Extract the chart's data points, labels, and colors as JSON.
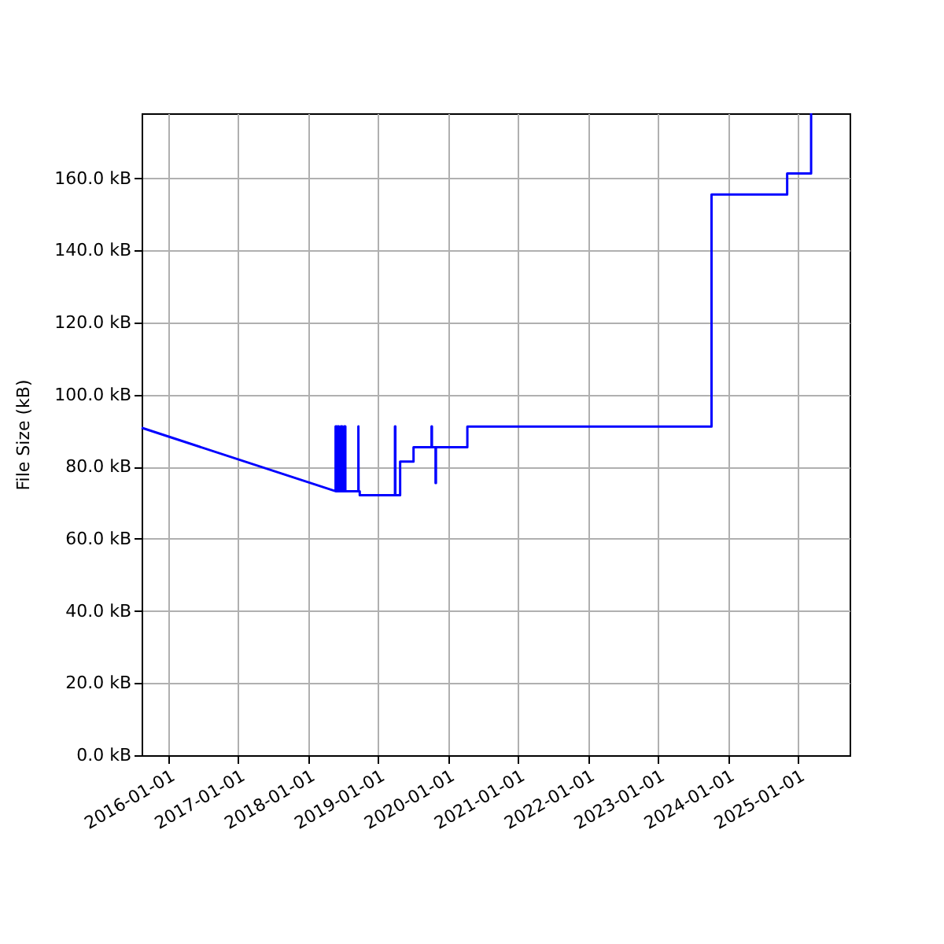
{
  "chart_data": {
    "type": "line",
    "ylabel": "File Size (kB)",
    "x": [
      "2015-08-15",
      "2018-05-24",
      "2018-05-24",
      "2018-05-29",
      "2018-05-29",
      "2018-06-04",
      "2018-06-04",
      "2018-06-10",
      "2018-06-10",
      "2018-06-20",
      "2018-06-20",
      "2018-06-28",
      "2018-06-28",
      "2018-07-08",
      "2018-07-08",
      "2018-07-14",
      "2018-07-14",
      "2018-09-20",
      "2018-09-20",
      "2018-09-21",
      "2018-09-27",
      "2018-09-27",
      "2019-03-30",
      "2019-03-30",
      "2019-04-01",
      "2019-04-01",
      "2019-04-26",
      "2019-04-26",
      "2019-07-05",
      "2019-07-05",
      "2019-10-07",
      "2019-10-07",
      "2019-10-09",
      "2019-10-09",
      "2019-10-28",
      "2019-10-28",
      "2019-10-30",
      "2019-10-30",
      "2020-04-11",
      "2020-04-11",
      "2023-10-08",
      "2023-10-08",
      "2024-11-06",
      "2024-11-06",
      "2025-03-11",
      "2025-03-11"
    ],
    "series": [
      {
        "color": "#0000ff",
        "values": [
          90.8,
          73.2,
          91.2,
          91.2,
          73.2,
          73.2,
          91.2,
          91.2,
          73.2,
          73.2,
          91.2,
          91.2,
          73.2,
          73.2,
          91.2,
          91.2,
          73.2,
          73.2,
          91.2,
          73.2,
          73.2,
          72.1,
          72.1,
          91.2,
          91.2,
          72.1,
          72.1,
          81.4,
          81.4,
          85.4,
          85.4,
          91.2,
          91.2,
          85.4,
          85.4,
          75.5,
          75.5,
          85.4,
          85.4,
          91.1,
          91.1,
          155.5,
          155.5,
          161.3,
          161.3,
          178
        ]
      }
    ],
    "xlim": [
      "2015-08-15",
      "2025-09-28"
    ],
    "xticks": [
      "2016-01-01",
      "2017-01-01",
      "2018-01-01",
      "2019-01-01",
      "2020-01-01",
      "2021-01-01",
      "2022-01-01",
      "2023-01-01",
      "2024-01-01",
      "2025-01-01"
    ],
    "ylim": [
      0,
      178
    ],
    "yticks": [
      {
        "value": 0,
        "label": "0.0 kB"
      },
      {
        "value": 20,
        "label": "20.0 kB"
      },
      {
        "value": 40,
        "label": "40.0 kB"
      },
      {
        "value": 60,
        "label": "60.0 kB"
      },
      {
        "value": 80,
        "label": "80.0 kB"
      },
      {
        "value": 100,
        "label": "100.0 kB"
      },
      {
        "value": 120,
        "label": "120.0 kB"
      },
      {
        "value": 140,
        "label": "140.0 kB"
      },
      {
        "value": 160,
        "label": "160.0 kB"
      }
    ],
    "grid": true,
    "marker": "none",
    "line_style": "solid"
  }
}
